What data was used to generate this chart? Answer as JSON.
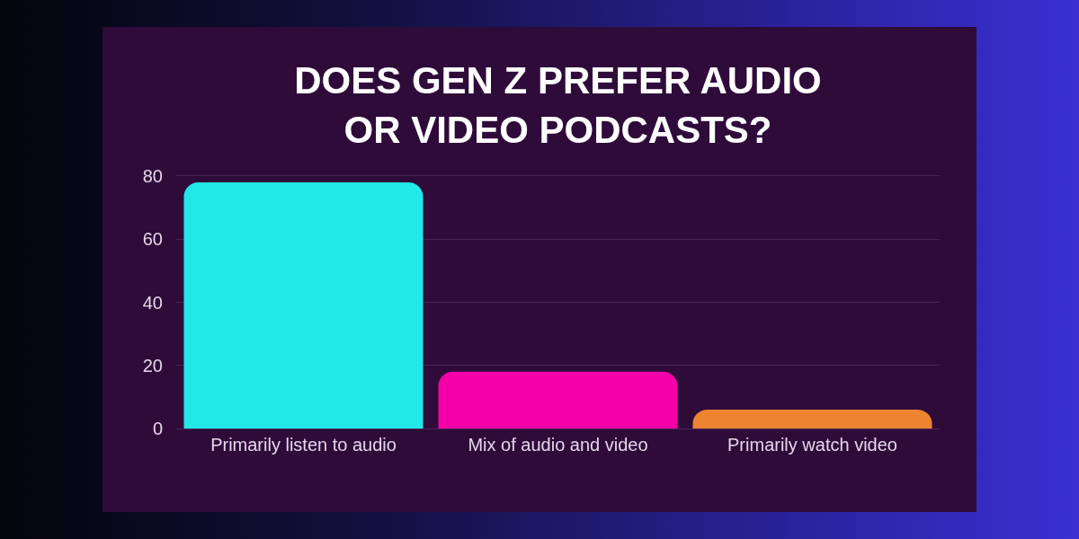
{
  "chart_data": {
    "type": "bar",
    "title": "DOES GEN Z PREFER AUDIO\nOR VIDEO PODCASTS?",
    "categories": [
      "Primarily listen to audio",
      "Mix of audio and video",
      "Primarily watch video"
    ],
    "values": [
      78,
      18,
      6
    ],
    "colors": [
      "#22e8e8",
      "#f500a8",
      "#ec8430"
    ],
    "ylim": [
      0,
      80
    ],
    "yticks": [
      0,
      20,
      40,
      60,
      80
    ],
    "grid": "y"
  }
}
